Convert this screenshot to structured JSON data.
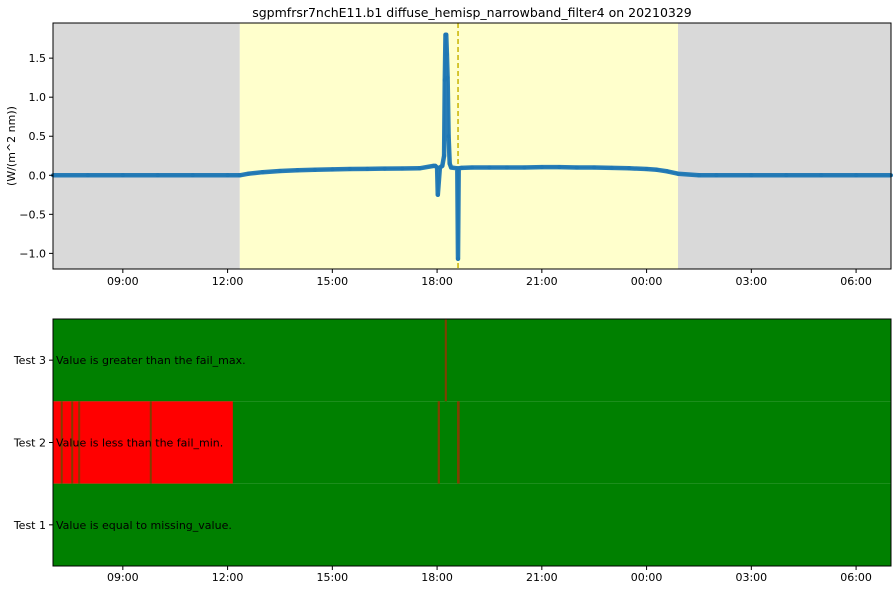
{
  "chart_data": [
    {
      "type": "line",
      "title": "sgpmfrsr7nchE11.b1 diffuse_hemisp_narrowband_filter4 on 20210329",
      "ylabel": "(W/(m^2 nm))",
      "xlabel": "",
      "x_unit": "hours from 07:00 on 20210329",
      "xlim": [
        0,
        24
      ],
      "ylim": [
        -1.2,
        1.95
      ],
      "xticks": [
        2,
        5,
        8,
        11,
        14,
        17,
        20,
        23
      ],
      "xtick_labels": [
        "09:00",
        "12:00",
        "15:00",
        "18:00",
        "21:00",
        "00:00",
        "03:00",
        "06:00"
      ],
      "yticks": [
        -1.0,
        -0.5,
        0.0,
        0.5,
        1.0,
        1.5
      ],
      "ytick_labels": [
        "−1.0",
        "−0.5",
        "0.0",
        "0.5",
        "1.0",
        "1.5"
      ],
      "night_shading": [
        [
          0,
          5.35
        ],
        [
          17.9,
          24
        ]
      ],
      "day_shading": [
        [
          5.35,
          17.9
        ]
      ],
      "marker_line_x": 11.6,
      "colors": {
        "series": "#1f77b4",
        "night": "#d9d9d9",
        "day": "#ffffcc",
        "marker": "#c8b400"
      },
      "series": [
        {
          "x": [
            0,
            1,
            2,
            3,
            4,
            5,
            5.35,
            5.6,
            6,
            6.5,
            7,
            7.5,
            8,
            8.5,
            9,
            9.5,
            10,
            10.5,
            10.9,
            10.95,
            11.0,
            11.02,
            11.08,
            11.15,
            11.2,
            11.22,
            11.24,
            11.26,
            11.28,
            11.3,
            11.33,
            11.36,
            11.4,
            11.58,
            11.6,
            11.62,
            11.7,
            12,
            12.5,
            13,
            13.5,
            14,
            14.5,
            15,
            15.5,
            16,
            16.5,
            17,
            17.3,
            17.6,
            17.9,
            18.5,
            19,
            20,
            21,
            22,
            23,
            24
          ],
          "y": [
            0,
            0,
            0,
            0,
            0,
            0,
            0,
            0.02,
            0.04,
            0.055,
            0.065,
            0.07,
            0.075,
            0.08,
            0.082,
            0.085,
            0.087,
            0.09,
            0.12,
            0.12,
            0.1,
            -0.25,
            0.1,
            0.12,
            0.25,
            1.22,
            1.8,
            1.8,
            1.55,
            1.25,
            0.5,
            0.15,
            0.1,
            0.09,
            -1.07,
            0.09,
            0.095,
            0.1,
            0.1,
            0.1,
            0.1,
            0.105,
            0.105,
            0.1,
            0.1,
            0.095,
            0.09,
            0.08,
            0.07,
            0.05,
            0.02,
            0,
            0,
            0,
            0,
            0,
            0,
            0
          ]
        }
      ]
    },
    {
      "type": "heatmap",
      "xlim": [
        0,
        24
      ],
      "xticks": [
        2,
        5,
        8,
        11,
        14,
        17,
        20,
        23
      ],
      "xtick_labels": [
        "09:00",
        "12:00",
        "15:00",
        "18:00",
        "21:00",
        "00:00",
        "03:00",
        "06:00"
      ],
      "colors": {
        "pass": "#008000",
        "fail": "#ff0000",
        "mixed": "#7f3f00"
      },
      "rows": [
        {
          "name": "Test 3",
          "label": "Value is greater than the fail_max.",
          "fail_spans": [
            [
              11.22,
              11.28
            ]
          ]
        },
        {
          "name": "Test 2",
          "label": "Value is less than the fail_min.",
          "fail_spans": [
            [
              0,
              5.15
            ],
            [
              11.02,
              11.08
            ],
            [
              11.59,
              11.62
            ]
          ],
          "mixed_ticks": [
            0.25,
            0.55,
            0.75,
            2.8,
            11.05,
            11.6
          ]
        },
        {
          "name": "Test 1",
          "label": "Value is equal to missing_value.",
          "fail_spans": []
        }
      ]
    }
  ]
}
